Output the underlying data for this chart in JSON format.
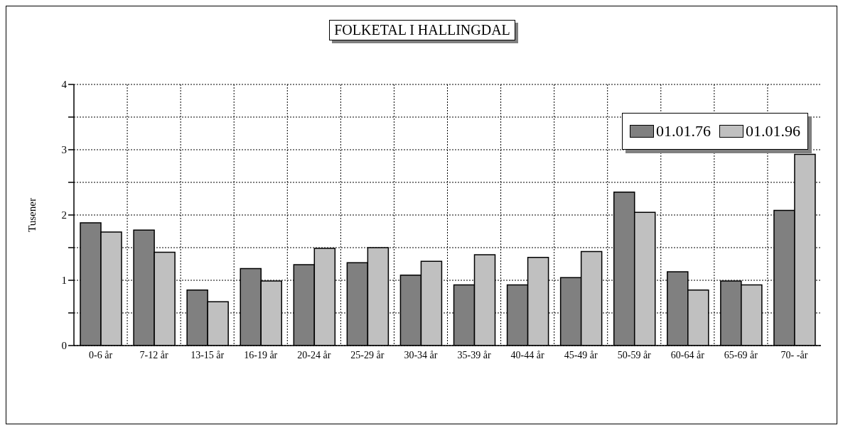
{
  "chart_data": {
    "type": "bar",
    "title": "FOLKETAL I HALLINGDAL",
    "ylabel": "Tusener",
    "categories": [
      "0-6 år",
      "7-12 år",
      "13-15 år",
      "16-19 år",
      "20-24 år",
      "25-29 år",
      "30-34 år",
      "35-39 år",
      "40-44 år",
      "45-49 år",
      "50-59 år",
      "60-64 år",
      "65-69 år",
      "70- -år"
    ],
    "series": [
      {
        "name": "01.01.76",
        "color": "#808080",
        "values": [
          1.88,
          1.77,
          0.85,
          1.18,
          1.24,
          1.27,
          1.08,
          0.93,
          0.93,
          1.04,
          2.35,
          1.13,
          0.99,
          2.07
        ]
      },
      {
        "name": "01.01.96",
        "color": "#c0c0c0",
        "values": [
          1.74,
          1.43,
          0.67,
          0.99,
          1.49,
          1.5,
          1.29,
          1.39,
          1.35,
          1.44,
          2.04,
          0.85,
          0.93,
          2.93
        ]
      }
    ],
    "ylim": [
      0,
      4
    ],
    "yticks": [
      0,
      {
        "value": 0.5,
        "label": null
      },
      1,
      {
        "value": 1.5,
        "label": null
      },
      2,
      {
        "value": 2.5,
        "label": null
      },
      3,
      {
        "value": 3.5,
        "label": null
      },
      4
    ],
    "grid": true,
    "legend": "top right"
  }
}
